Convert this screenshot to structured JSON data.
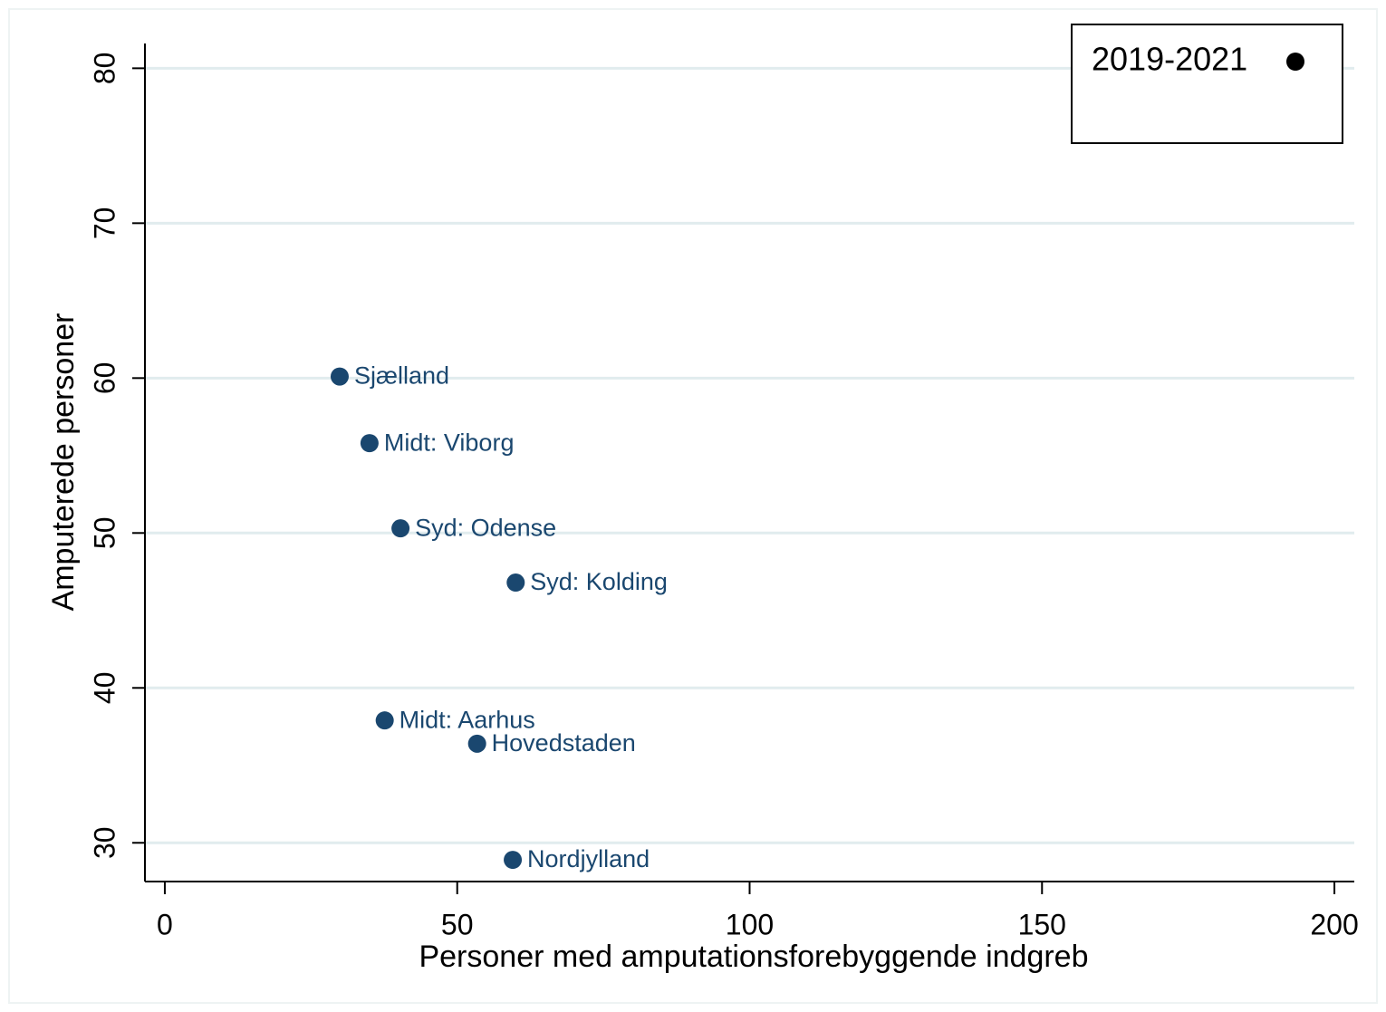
{
  "chart_data": {
    "type": "scatter",
    "x_label": "Personer med amputationsforebyggende indgreb",
    "y_label": "Amputerede personer",
    "series": [
      {
        "name": "2019-2021",
        "color": "#1a476f",
        "legend_color": "#000000",
        "labels": [
          "Sjælland",
          "Midt: Viborg",
          "Syd: Odense",
          "Syd: Kolding",
          "Midt: Aarhus",
          "Hovedstaden",
          "Nordjylland"
        ],
        "x": [
          29.9,
          35.0,
          40.3,
          60.0,
          37.6,
          53.4,
          59.5
        ],
        "values": [
          60.1,
          55.8,
          50.3,
          46.8,
          37.9,
          36.4,
          28.9
        ]
      }
    ],
    "xlim": [
      -3.4,
      203.4
    ],
    "ylim": [
      27.5,
      81.6
    ],
    "xticks": [
      0,
      50,
      100,
      150,
      200
    ],
    "yticks": [
      30,
      40,
      50,
      60,
      70,
      80
    ],
    "grid": true,
    "legend_position": "top-right"
  }
}
